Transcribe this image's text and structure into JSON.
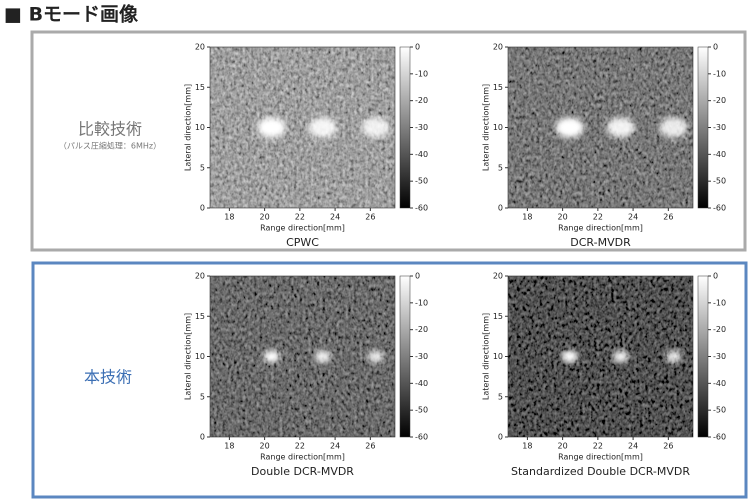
{
  "header": {
    "title": "■ Bモード画像"
  },
  "groups": [
    {
      "label": "比較技術",
      "sublabel": "（パルス圧縮処理：6MHz）"
    },
    {
      "label": "本技術"
    }
  ],
  "panels": [
    {
      "caption": "CPWC",
      "xlabel": "Range direction[mm]",
      "ylabel": "Lateral direction[mm]",
      "xlim": [
        16.9,
        27.4
      ],
      "ylim": [
        0,
        20
      ],
      "xticks": [
        18,
        20,
        22,
        24,
        26
      ],
      "yticks": [
        0,
        5,
        10,
        15,
        20
      ],
      "clim": [
        -60,
        0
      ],
      "cticks": [
        0,
        -10,
        -20,
        -30,
        -40,
        -50,
        -60
      ]
    },
    {
      "caption": "DCR-MVDR",
      "xlabel": "Range direction[mm]",
      "ylabel": "Lateral direction[mm]",
      "xlim": [
        16.9,
        27.4
      ],
      "ylim": [
        0,
        20
      ],
      "xticks": [
        18,
        20,
        22,
        24,
        26
      ],
      "yticks": [
        0,
        5,
        10,
        15,
        20
      ],
      "clim": [
        -60,
        0
      ],
      "cticks": [
        0,
        -10,
        -20,
        -30,
        -40,
        -50,
        -60
      ]
    },
    {
      "caption": "Double DCR-MVDR",
      "xlabel": "Range direction[mm]",
      "ylabel": "Lateral direction[mm]",
      "xlim": [
        16.9,
        27.4
      ],
      "ylim": [
        0,
        20
      ],
      "xticks": [
        18,
        20,
        22,
        24,
        26
      ],
      "yticks": [
        0,
        5,
        10,
        15,
        20
      ],
      "clim": [
        -60,
        0
      ],
      "cticks": [
        0,
        -10,
        -20,
        -30,
        -40,
        -50,
        -60
      ]
    },
    {
      "caption": "Standardized Double DCR-MVDR",
      "xlabel": "Range direction[mm]",
      "ylabel": "Lateral direction[mm]",
      "xlim": [
        16.9,
        27.4
      ],
      "ylim": [
        0,
        20
      ],
      "xticks": [
        18,
        20,
        22,
        24,
        26
      ],
      "yticks": [
        0,
        5,
        10,
        15,
        20
      ],
      "clim": [
        -60,
        0
      ],
      "cticks": [
        0,
        -10,
        -20,
        -30,
        -40,
        -50,
        -60
      ]
    }
  ]
}
